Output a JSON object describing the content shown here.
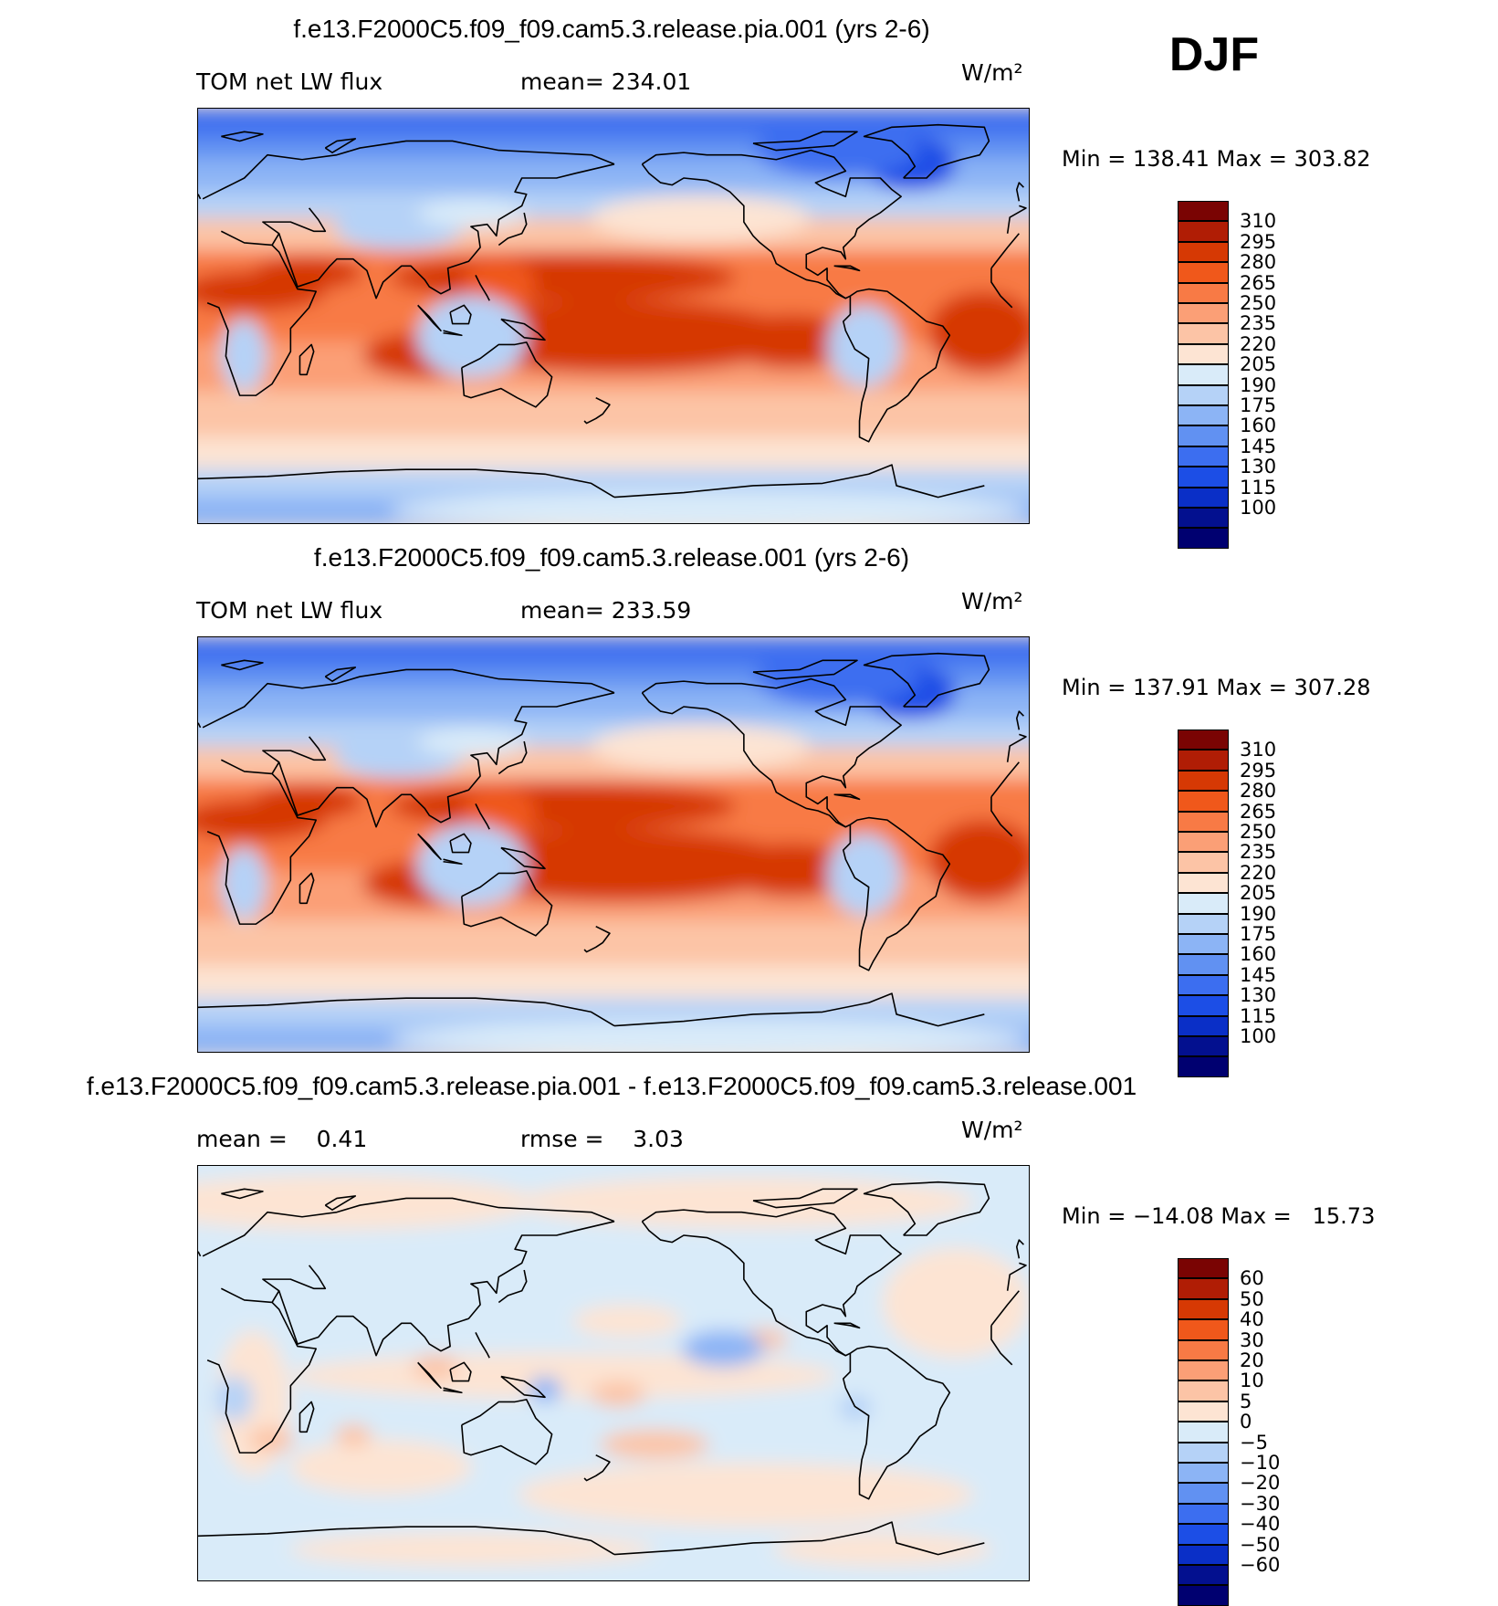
{
  "season": "DJF",
  "panels": [
    {
      "title": "f.e13.F2000C5.f09_f09.cam5.3.release.pia.001 (yrs 2-6)",
      "left_label": "TOM net LW flux",
      "mid_label": "mean= 234.01",
      "units": "W/m²",
      "minmax": "Min = 138.41 Max = 303.82",
      "colorbar": {
        "colors": [
          "#7a0403",
          "#b01d05",
          "#d63904",
          "#f0581b",
          "#f87a45",
          "#fb9f76",
          "#fcc4a6",
          "#fde4d3",
          "#d9ebf9",
          "#b5d2f7",
          "#8cb4f5",
          "#6191f2",
          "#3c6ef0",
          "#1c4ee6",
          "#0a2fc7",
          "#03108f",
          "#000070"
        ],
        "labels": [
          "310",
          "295",
          "280",
          "265",
          "250",
          "235",
          "220",
          "205",
          "190",
          "175",
          "160",
          "145",
          "130",
          "115",
          "100"
        ]
      },
      "map_fields": "model"
    },
    {
      "title": "f.e13.F2000C5.f09_f09.cam5.3.release.001 (yrs 2-6)",
      "left_label": "TOM net LW flux",
      "mid_label": "mean= 233.59",
      "units": "W/m²",
      "minmax": "Min = 137.91 Max = 307.28",
      "colorbar": {
        "colors": [
          "#7a0403",
          "#b01d05",
          "#d63904",
          "#f0581b",
          "#f87a45",
          "#fb9f76",
          "#fcc4a6",
          "#fde4d3",
          "#d9ebf9",
          "#b5d2f7",
          "#8cb4f5",
          "#6191f2",
          "#3c6ef0",
          "#1c4ee6",
          "#0a2fc7",
          "#03108f",
          "#000070"
        ],
        "labels": [
          "310",
          "295",
          "280",
          "265",
          "250",
          "235",
          "220",
          "205",
          "190",
          "175",
          "160",
          "145",
          "130",
          "115",
          "100"
        ]
      },
      "map_fields": "model"
    },
    {
      "title": "f.e13.F2000C5.f09_f09.cam5.3.release.pia.001 - f.e13.F2000C5.f09_f09.cam5.3.release.001",
      "left_label": "mean =    0.41",
      "mid_label": "rmse =    3.03",
      "units": "W/m²",
      "minmax": "Min = −14.08 Max =   15.73",
      "colorbar": {
        "colors": [
          "#7a0403",
          "#b01d05",
          "#d63904",
          "#f0581b",
          "#f87a45",
          "#fb9f76",
          "#fcc4a6",
          "#fde4d3",
          "#d9ebf9",
          "#b5d2f7",
          "#8cb4f5",
          "#6191f2",
          "#3c6ef0",
          "#1c4ee6",
          "#0a2fc7",
          "#03108f",
          "#000070"
        ],
        "labels": [
          "60",
          "50",
          "40",
          "30",
          "20",
          "10",
          "5",
          "0",
          "−5",
          "−10",
          "−20",
          "−30",
          "−40",
          "−50",
          "−60"
        ]
      },
      "map_fields": "diff"
    }
  ]
}
